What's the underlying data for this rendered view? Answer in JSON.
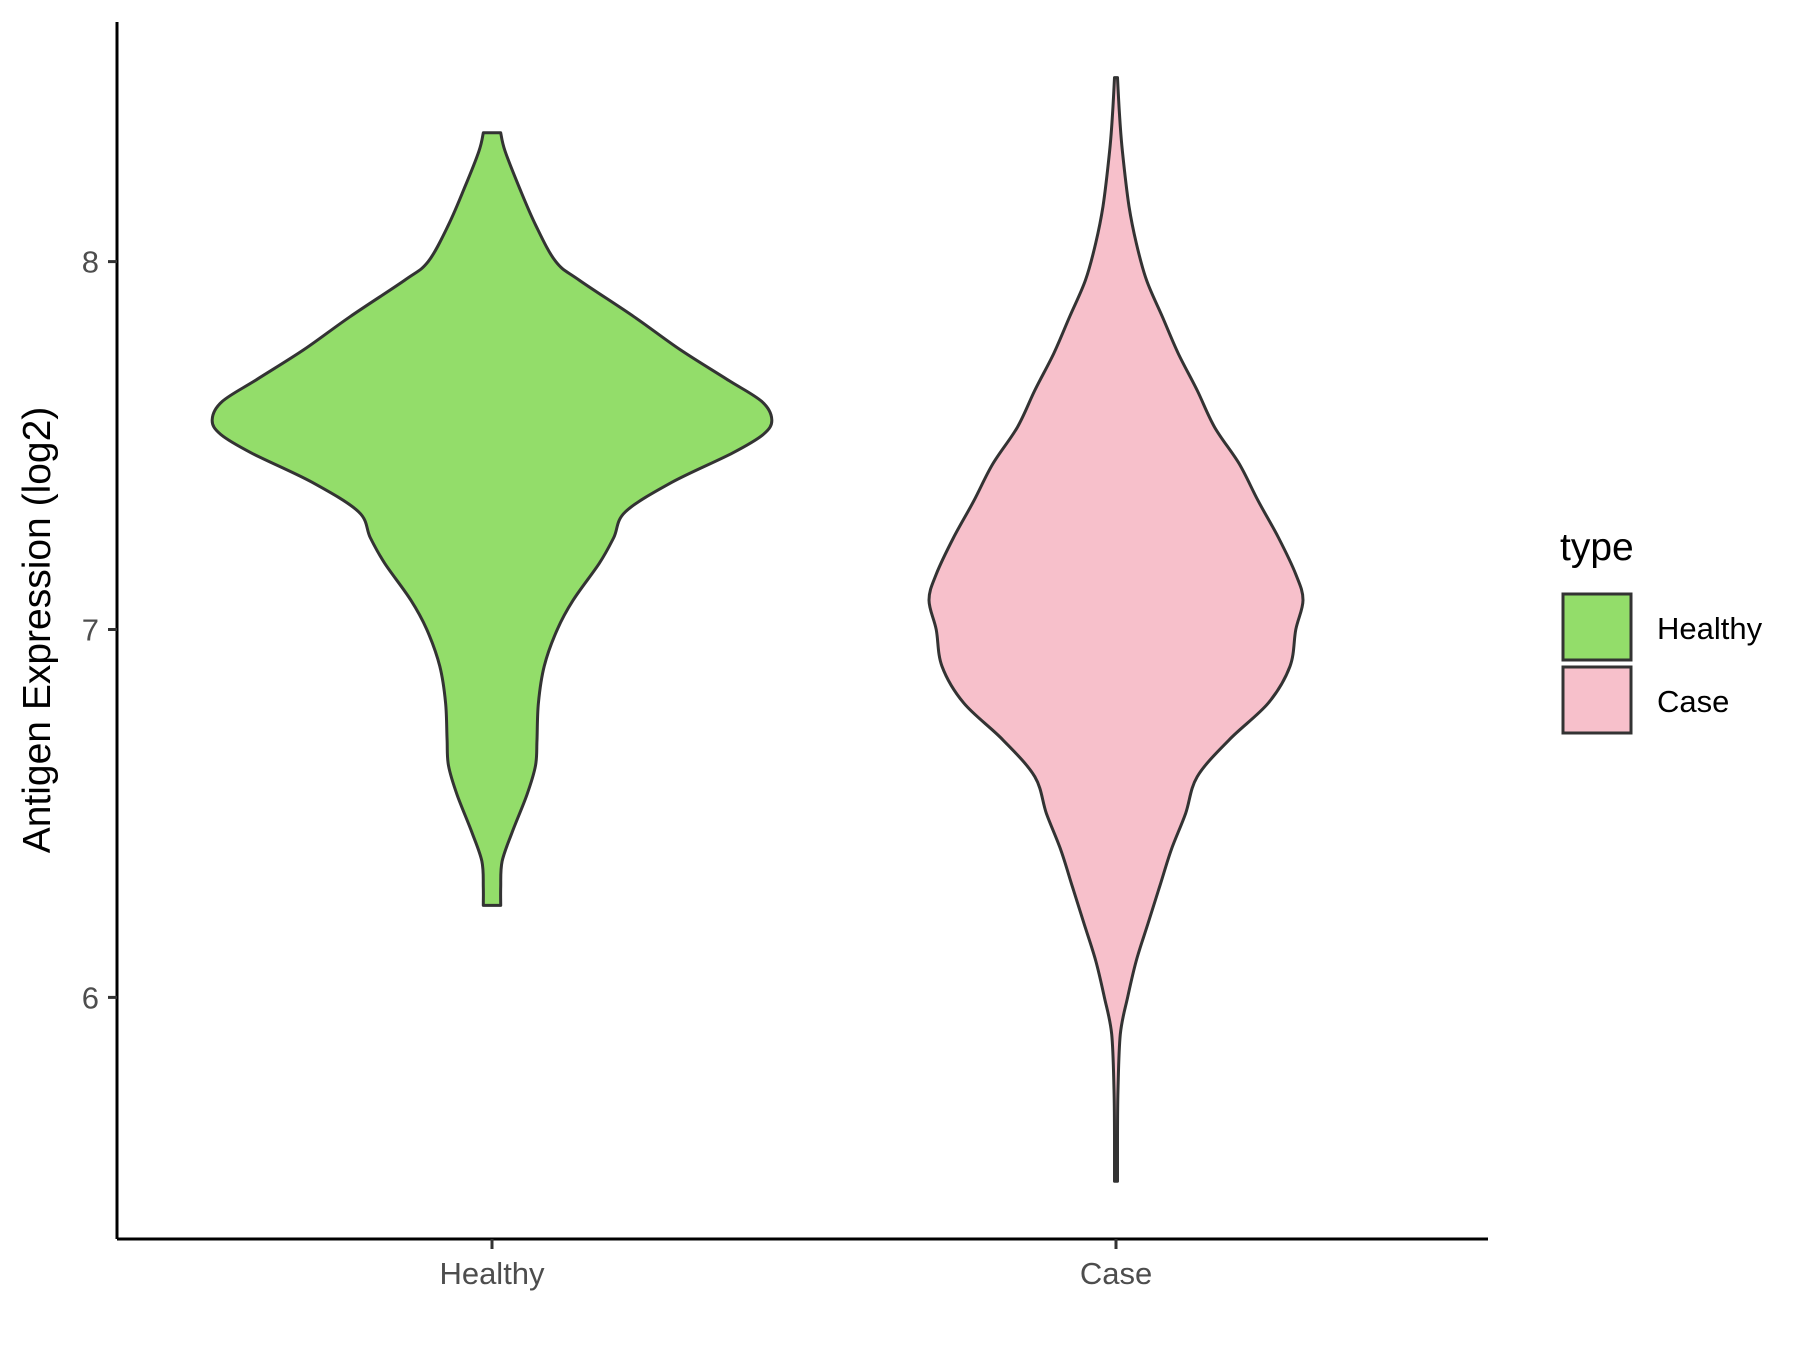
{
  "chart_data": {
    "type": "violin",
    "title": "",
    "xlabel": "",
    "ylabel": "Antigen Expression (log2)",
    "ylim": [
      5.4,
      8.65
    ],
    "yticks": [
      6,
      7,
      8
    ],
    "grid": false,
    "categories": [
      "Healthy",
      "Case"
    ],
    "colors": {
      "Healthy": "#93DD6A",
      "Case": "#F7C0CB"
    },
    "legend": {
      "title": "type",
      "position": "right",
      "entries": [
        "Healthy",
        "Case"
      ]
    },
    "series": [
      {
        "name": "Healthy",
        "min": 6.25,
        "max": 8.35,
        "density_profile": [
          [
            6.25,
            0.03
          ],
          [
            6.3,
            0.03
          ],
          [
            6.37,
            0.035
          ],
          [
            6.45,
            0.07
          ],
          [
            6.55,
            0.12
          ],
          [
            6.63,
            0.15
          ],
          [
            6.7,
            0.155
          ],
          [
            6.8,
            0.16
          ],
          [
            6.9,
            0.18
          ],
          [
            7.0,
            0.225
          ],
          [
            7.08,
            0.28
          ],
          [
            7.18,
            0.37
          ],
          [
            7.25,
            0.42
          ],
          [
            7.32,
            0.46
          ],
          [
            7.4,
            0.62
          ],
          [
            7.48,
            0.83
          ],
          [
            7.53,
            0.935
          ],
          [
            7.57,
            0.965
          ],
          [
            7.62,
            0.93
          ],
          [
            7.68,
            0.81
          ],
          [
            7.76,
            0.65
          ],
          [
            7.85,
            0.49
          ],
          [
            7.95,
            0.3
          ],
          [
            8.0,
            0.22
          ],
          [
            8.1,
            0.15
          ],
          [
            8.2,
            0.095
          ],
          [
            8.3,
            0.045
          ],
          [
            8.35,
            0.03
          ]
        ]
      },
      {
        "name": "Case",
        "min": 5.5,
        "max": 8.5,
        "density_profile": [
          [
            5.5,
            0.005
          ],
          [
            5.6,
            0.005
          ],
          [
            5.75,
            0.007
          ],
          [
            5.9,
            0.015
          ],
          [
            6.0,
            0.04
          ],
          [
            6.1,
            0.07
          ],
          [
            6.2,
            0.11
          ],
          [
            6.3,
            0.15
          ],
          [
            6.4,
            0.19
          ],
          [
            6.5,
            0.24
          ],
          [
            6.6,
            0.28
          ],
          [
            6.7,
            0.39
          ],
          [
            6.8,
            0.525
          ],
          [
            6.9,
            0.6
          ],
          [
            7.0,
            0.62
          ],
          [
            7.08,
            0.645
          ],
          [
            7.15,
            0.62
          ],
          [
            7.25,
            0.56
          ],
          [
            7.35,
            0.49
          ],
          [
            7.45,
            0.425
          ],
          [
            7.55,
            0.34
          ],
          [
            7.65,
            0.28
          ],
          [
            7.75,
            0.215
          ],
          [
            7.85,
            0.16
          ],
          [
            7.95,
            0.105
          ],
          [
            8.05,
            0.07
          ],
          [
            8.15,
            0.045
          ],
          [
            8.3,
            0.022
          ],
          [
            8.4,
            0.012
          ],
          [
            8.5,
            0.005
          ]
        ]
      }
    ]
  }
}
